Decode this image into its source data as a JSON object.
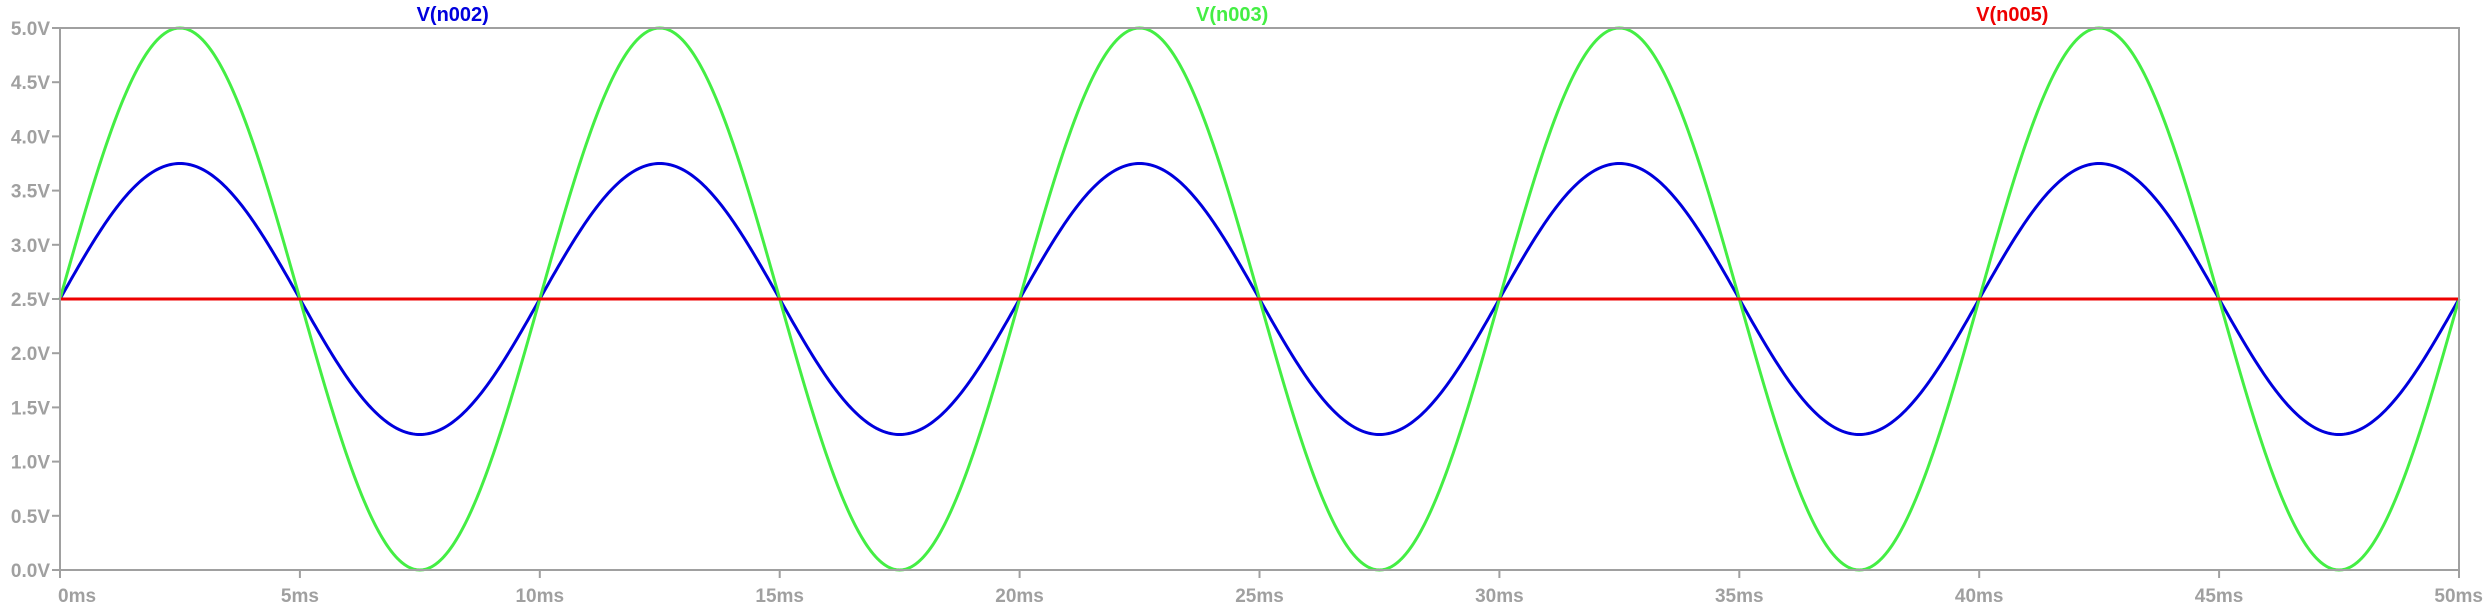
{
  "chart_data": {
    "type": "line",
    "title": "",
    "xlabel": "",
    "ylabel": "",
    "xlim": [
      0,
      50
    ],
    "ylim": [
      0,
      5
    ],
    "x_unit": "ms",
    "y_unit": "V",
    "grid": false,
    "x_ticks": [
      0,
      5,
      10,
      15,
      20,
      25,
      30,
      35,
      40,
      45,
      50
    ],
    "x_tick_labels": [
      "0ms",
      "5ms",
      "10ms",
      "15ms",
      "20ms",
      "25ms",
      "30ms",
      "35ms",
      "40ms",
      "45ms",
      "50ms"
    ],
    "y_ticks": [
      0,
      0.5,
      1,
      1.5,
      2,
      2.5,
      3,
      3.5,
      4,
      4.5,
      5
    ],
    "y_tick_labels": [
      "0.0V",
      "0.5V",
      "1.0V",
      "1.5V",
      "2.0V",
      "2.5V",
      "3.0V",
      "3.5V",
      "4.0V",
      "4.5V",
      "5.0V"
    ],
    "series": [
      {
        "name": "V(n002)",
        "color": "#0000dd",
        "waveform": "sine",
        "offset": 2.5,
        "amplitude": 1.25,
        "frequency_hz": 100,
        "phase_deg": 0
      },
      {
        "name": "V(n003)",
        "color": "#44ee44",
        "waveform": "sine",
        "offset": 2.5,
        "amplitude": 2.5,
        "frequency_hz": 100,
        "phase_deg": 0
      },
      {
        "name": "V(n005)",
        "color": "#ee0000",
        "waveform": "dc",
        "offset": 2.5,
        "amplitude": 0,
        "frequency_hz": 0,
        "phase_deg": 0
      }
    ]
  }
}
